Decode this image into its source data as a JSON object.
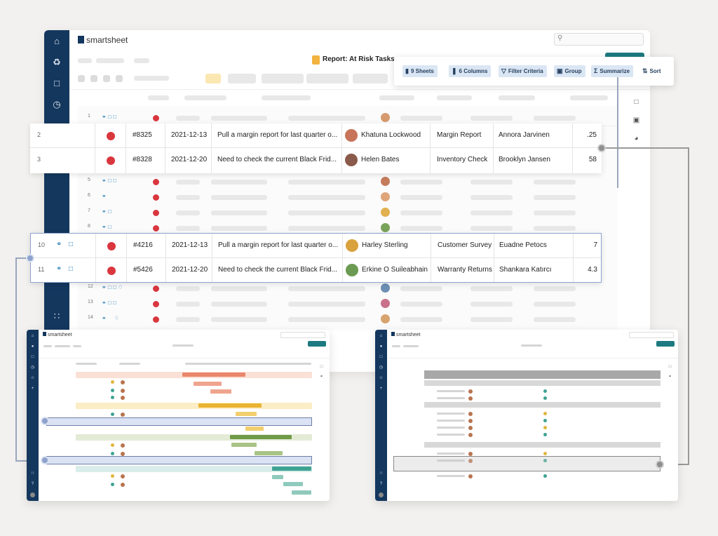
{
  "app": {
    "brand": "smartsheet",
    "title": "Report: At Risk Tasks"
  },
  "sidebar": {
    "icons": [
      "home-icon",
      "bell-icon",
      "folder-icon",
      "clock-icon",
      "apps-icon"
    ]
  },
  "toolbar": {
    "sheets": "9 Sheets",
    "columns": "6 Columns",
    "filter": "Filter Criteria",
    "group": "Group",
    "summarize": "Summarize",
    "sort": "Sort"
  },
  "colors": {
    "navy": "#14375e",
    "accent_blue": "#dbe6f4",
    "status_red": "#d9363e",
    "teal": "#1d7a80"
  },
  "highlight_top": [
    {
      "row": "2",
      "id": "#8325",
      "date": "2021-12-13",
      "task": "Pull a margin report for last quarter o...",
      "assignee": "Khatuna Lockwood",
      "category": "Margin Report",
      "owner": "Annora Jarvinen",
      "value": ".25"
    },
    {
      "row": "3",
      "id": "#8328",
      "date": "2021-12-20",
      "task": "Need to check the current Black Frid...",
      "assignee": "Helen Bates",
      "category": "Inventory Check",
      "owner": "Brooklyn Jansen",
      "value": "58"
    }
  ],
  "highlight_bottom": [
    {
      "row": "10",
      "id": "#4216",
      "date": "2021-12-13",
      "task": "Pull a margin report for last quarter o...",
      "assignee": "Harley Sterling",
      "category": "Customer Survey",
      "owner": "Euadne Petocs",
      "value": "7"
    },
    {
      "row": "11",
      "id": "#5426",
      "date": "2021-12-20",
      "task": "Need to check the current Black Frid...",
      "assignee": "Erkine O Suileabhain",
      "category": "Warranty Returns",
      "owner": "Shankara Katırcı",
      "value": "4.3"
    }
  ],
  "background_rows": [
    "1",
    "5",
    "6",
    "7",
    "8",
    "12",
    "13",
    "14"
  ]
}
